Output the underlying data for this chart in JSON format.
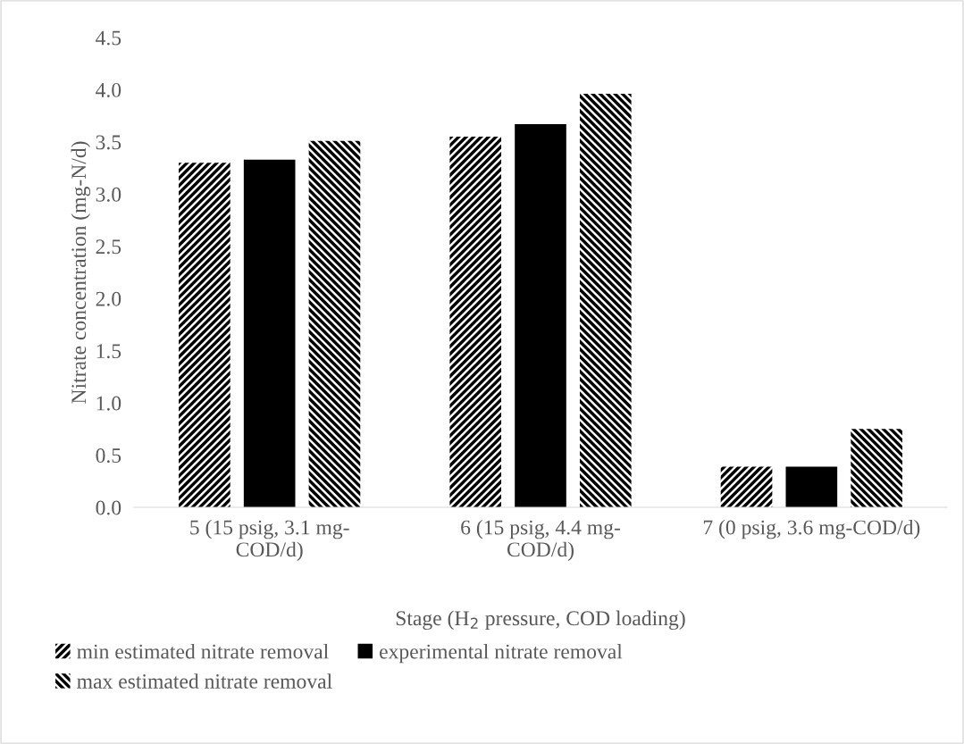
{
  "chart_data": {
    "type": "bar",
    "xlabel": "Stage (H$_{2}$ pressure, COD loading)",
    "ylabel": "Nitrate concentration (mg-N/d)",
    "categories": [
      "5 (15 psig, 3.1 mg-COD/d)",
      "6 (15 psig, 4.4 mg-COD/d)",
      "7 (0 psig, 3.6 mg-COD/d)"
    ],
    "series": [
      {
        "name": "min estimated nitrate removal",
        "color": "#000000",
        "values": [
          3.3,
          3.55,
          0.39
        ]
      },
      {
        "name": "experimental nitrate removal",
        "color": "#000000",
        "values": [
          3.33,
          3.67,
          0.39
        ]
      },
      {
        "name": "max estimated nitrate removal",
        "color": "#000000",
        "values": [
          3.51,
          3.96,
          0.75
        ]
      }
    ],
    "ylim": [
      0,
      4.5
    ],
    "yticks": [
      {
        "value": 0,
        "label": "0.0"
      },
      0.5,
      {
        "value": 1,
        "label": "1.0"
      },
      1.5,
      {
        "value": 2,
        "label": "2.0"
      },
      2.5,
      {
        "value": 3,
        "label": "3.0"
      },
      3.5,
      {
        "value": 4,
        "label": "4.0"
      },
      4.5
    ],
    "grid": false,
    "legend": "bottom"
  }
}
